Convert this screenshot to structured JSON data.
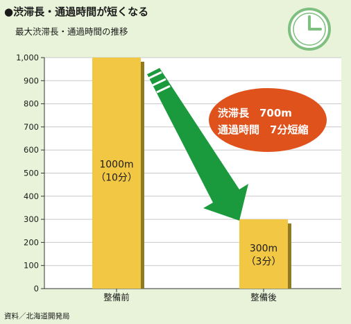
{
  "header": {
    "title": "●渋滞長・通過時間が短くなる",
    "subtitle": "最大渋滞長・通過時間の推移"
  },
  "source": "資料／北海道開発局",
  "callout": {
    "line1": "渋滞長　700m",
    "line2": "通過時間　7分短縮",
    "fill": "#e0521c"
  },
  "colors": {
    "background": "#e9f3d9",
    "bar": "#f2c744",
    "bar_shadow": "#8f7a26",
    "arrow": "#1a9a3c",
    "clock": "#7fbf7f"
  },
  "chart_data": {
    "type": "bar",
    "categories": [
      "整備前",
      "整備後"
    ],
    "values": [
      1000,
      300
    ],
    "bar_labels": [
      [
        "1000m",
        "（10分）"
      ],
      [
        "300m",
        "（3分）"
      ]
    ],
    "ylim": [
      0,
      1000
    ],
    "yticks": [
      0,
      100,
      200,
      300,
      400,
      500,
      600,
      700,
      800,
      900,
      1000
    ],
    "ytick_labels": [
      "0",
      "100",
      "200",
      "300",
      "400",
      "500",
      "600",
      "700",
      "800",
      "900",
      "1,000"
    ],
    "grid": true,
    "legend": "none"
  }
}
